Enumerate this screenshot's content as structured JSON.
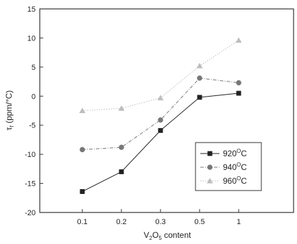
{
  "chart_data": {
    "type": "line",
    "xlabel": "content",
    "xlabel_formula": {
      "base1": "V",
      "sub1": "2",
      "base2": "O",
      "sub2": "5"
    },
    "ylabel": "(ppm/°C)",
    "ylabel_symbol": {
      "base": "τ",
      "sub": "f"
    },
    "categories": [
      "0.1",
      "0.2",
      "0.3",
      "0.5",
      "1"
    ],
    "ylim": [
      -20,
      15
    ],
    "yticks": [
      "-20",
      "-15",
      "-10",
      "-5",
      "0",
      "5",
      "10",
      "15"
    ],
    "grid": false,
    "legend_position": "bottom-right",
    "series": [
      {
        "name": "920",
        "unit_sup": "O",
        "unit": "C",
        "marker": "square",
        "color": "#222222",
        "line": "solid",
        "values": [
          -16.4,
          -13.0,
          -5.9,
          -0.2,
          0.5
        ]
      },
      {
        "name": "940",
        "unit_sup": "O",
        "unit": "C",
        "marker": "circle",
        "color": "#777777",
        "line": "dash-dot",
        "values": [
          -9.2,
          -8.8,
          -4.1,
          3.1,
          2.3
        ]
      },
      {
        "name": "960",
        "unit_sup": "O",
        "unit": "C",
        "marker": "triangle",
        "color": "#bdbdbd",
        "line": "dotted",
        "values": [
          -2.5,
          -2.1,
          -0.3,
          5.2,
          9.6
        ]
      }
    ]
  }
}
